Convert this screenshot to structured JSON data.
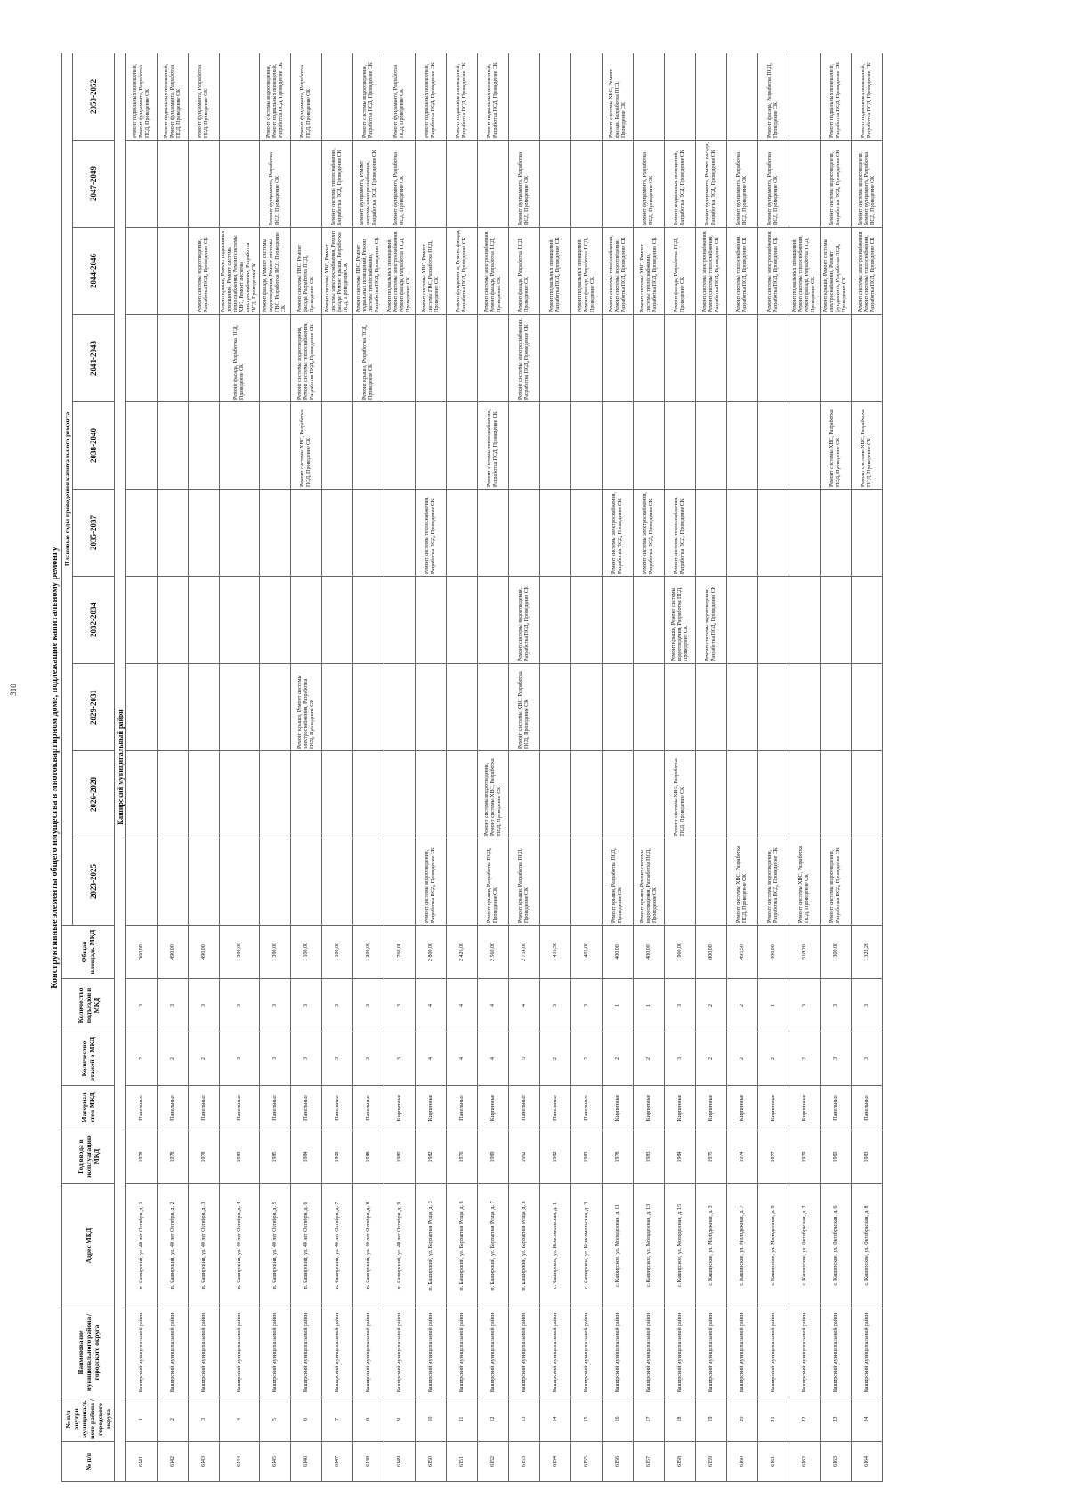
{
  "header": {
    "page_number": "310",
    "title": "Конструктивные элементы общего имущества в многоквартирном доме, подлежащие капитальному ремонту",
    "plan_years_label": "Плановые годы проведения капитального ремонта"
  },
  "table": {
    "columns": [
      "№ п/п",
      "№ п/п внутри муниципального района / городского округа",
      "Наименование муниципального района / городского округа",
      "Адрес МКД",
      "Год ввода в эксплуатацию МКД",
      "Материал стен МКД",
      "Количество этажей в МКД",
      "Количество подъездов в МКД",
      "Общая площадь МКД",
      "2023-2025",
      "2026-2028",
      "2029-2031",
      "2032-2034",
      "2035-2037",
      "2038-2040",
      "2041-2043",
      "2044-2046",
      "2047-2049",
      "2050-2052"
    ],
    "section": "Каширский муниципальный район",
    "rows": [
      [
        6141,
        1,
        "Каширский муниципальный район",
        "п. Каширский, ул. 40 лет Октября, д. 1",
        1978,
        "Панельные",
        2,
        3,
        "360,00",
        null,
        null,
        null,
        null,
        null,
        null,
        null,
        null,
        null,
        "Ремонт подвальных помещений, Ремонт фундамента, Разработка ПСД, Проведение СК"
      ],
      [
        6142,
        2,
        "Каширский муниципальный район",
        "п. Каширский, ул. 40 лет Октября, д. 2",
        1978,
        "Панельные",
        2,
        3,
        "490,00",
        null,
        null,
        null,
        null,
        null,
        null,
        null,
        null,
        null,
        "Ремонт подвальных помещений, Ремонт фундамента, Разработка ПСД, Проведение СК"
      ],
      [
        6143,
        3,
        "Каширский муниципальный район",
        "п. Каширский, ул. 40 лет Октября, д. 3",
        1978,
        "Панельные",
        2,
        3,
        "490,00",
        null,
        null,
        null,
        null,
        null,
        null,
        null,
        "Ремонт системы водоотведения, Разработка ПСД, Проведение СК",
        null,
        "Ремонт фундамента, Разработка ПСД, Проведение СК"
      ],
      [
        6144,
        4,
        "Каширский муниципальный район",
        "п. Каширский, ул. 40 лет Октября, д. 4",
        1983,
        "Панельные",
        3,
        3,
        "1 300,00",
        null,
        null,
        null,
        null,
        null,
        null,
        "Ремонт фасада, Разработка ПСД, Проведение СК",
        "Ремонт крыши, Ремонт подвальных помещений, Ремонт системы теплоснабжения, Ремонт системы ХВС, Ремонт системы электроснабжения, Разработка ПСД, Проведение СК",
        null,
        null
      ],
      [
        6145,
        5,
        "Каширский муниципальный район",
        "п. Каширский, ул. 40 лет Октября, д. 5",
        1985,
        "Панельные",
        3,
        3,
        "1 390,00",
        null,
        null,
        null,
        null,
        null,
        null,
        null,
        "Ремонт фасада, Ремонт системы водоотведения, Ремонт системы ГВС, Разработка ПСД, Проведение СК",
        "Ремонт фундамента, Разработка ПСД, Проведение СК",
        "Ремонт системы водоотведения, Ремонт подвальных помещений, Разработка ПСД, Проведение СК"
      ],
      [
        6146,
        6,
        "Каширский муниципальный район",
        "п. Каширский, ул. 40 лет Октября, д. 6",
        1984,
        "Панельные",
        3,
        3,
        "1 100,00",
        null,
        null,
        "Ремонт крыши, Ремонт системы электроснабжения, Разработка ПСД, Проведение СК",
        null,
        null,
        "Ремонт системы ХВС, Разработка ПСД, Проведение СК",
        "Ремонт системы водоотведения, Ремонт системы теплоснабжения, Разработка ПСД, Проведение СК",
        "Ремонт системы ГВС, Ремонт фасада, Разработка ПСД, Проведение СК",
        null,
        "Ремонт фундамента, Разработка ПСД, Проведение СК"
      ],
      [
        6147,
        7,
        "Каширский муниципальный район",
        "п. Каширский, ул. 40 лет Октября, д. 7",
        1988,
        "Панельные",
        3,
        3,
        "1 100,00",
        null,
        null,
        null,
        null,
        null,
        null,
        null,
        "Ремонт системы ХВС, Ремонт системы электроснабжения, Ремонт фасада, Ремонт крыши, Разработка ПСД, Проведение СК",
        "Ремонт системы теплоснабжения, Разработка ПСД, Проведение СК",
        null
      ],
      [
        6148,
        8,
        "Каширский муниципальный район",
        "п. Каширский, ул. 40 лет Октября, д. 8",
        1988,
        "Панельные",
        3,
        3,
        "1 300,00",
        null,
        null,
        null,
        null,
        null,
        null,
        "Ремонт крыши, Разработка ПСД, Проведение СК",
        "Ремонт системы ГВС, Ремонт подвальных помещений, Ремонт системы теплоснабжения, Разработка ПСД, Проведение СК",
        "Ремонт фундамента, Ремонт системы электроснабжения, Разработка ПСД, Проведение СК",
        "Ремонт системы водоотведения, Разработка ПСД, Проведение СК"
      ],
      [
        6149,
        9,
        "Каширский муниципальный район",
        "п. Каширский, ул. 40 лет Октября, д. 9",
        1980,
        "Кирпичные",
        3,
        3,
        "1 760,00",
        null,
        null,
        null,
        null,
        null,
        null,
        null,
        "Ремонт подвальных помещений, Ремонт системы электроснабжения, Ремонт фасада, Разработка ПСД, Проведение СК",
        "Ремонт фундамента, Разработка ПСД, Проведение СК",
        "Ремонт фундамента, Разработка ПСД, Проведение СК"
      ],
      [
        6150,
        10,
        "Каширский муниципальный район",
        "п. Каширский, ул. Бархатная Роща, д. 3",
        1982,
        "Кирпичные",
        4,
        4,
        "2 800,00",
        "Ремонт системы водоотведения, Разработка ПСД, Проведение СК",
        null,
        null,
        null,
        "Ремонт системы теплоснабжения, Разработка ПСД, Проведение СК",
        null,
        null,
        "Ремонт системы ХВС, Ремонт системы ГВС, Разработка ПСД, Проведение СК",
        null,
        "Ремонт подвальных помещений, Разработка ПСД, Проведение СК"
      ],
      [
        6151,
        11,
        "Каширский муниципальный район",
        "п. Каширский, ул. Бархатная Роща, д. 6",
        1976,
        "Панельные",
        4,
        4,
        "2 426,00",
        null,
        null,
        null,
        null,
        null,
        null,
        null,
        "Ремонт фундамента, Ремонт фасада, Разработка ПСД, Проведение СК",
        null,
        "Ремонт подвальных помещений, Разработка ПСД, Проведение СК"
      ],
      [
        6152,
        12,
        "Каширский муниципальный район",
        "п. Каширский, ул. Бархатная Роща, д. 7",
        1989,
        "Кирпичные",
        4,
        4,
        "2 560,00",
        "Ремонт крыши, Разработка ПСД, Проведение СК",
        "Ремонт системы водоотведения, Ремонт системы ХВС, Разработка ПСД, Проведение СК",
        null,
        null,
        null,
        "Ремонт системы теплоснабжения, Разработка ПСД, Проведение СК",
        null,
        "Ремонт системы электроснабжения, Ремонт фасада, Разработка ПСД, Проведение СК",
        null,
        "Ремонт подвальных помещений, Разработка ПСД, Проведение СК"
      ],
      [
        6153,
        13,
        "Каширский муниципальный район",
        "п. Каширский, ул. Бархатная Роща, д. 8",
        1992,
        "Панельные",
        5,
        4,
        "2 714,00",
        "Ремонт крыши, Разработка ПСД, Проведение СК",
        null,
        "Ремонт системы ХВС, Разработка ПСД, Проведение СК",
        "Ремонт системы водоотведения, Разработка ПСД, Проведение СК",
        null,
        null,
        "Ремонт системы электроснабжения, Разработка ПСД, Проведение СК",
        "Ремонт фасада, Разработка ПСД, Проведение СК",
        "Ремонт фундамента, Разработка ПСД, Проведение СК",
        null
      ],
      [
        6154,
        14,
        "Каширский муниципальный район",
        "с. Каширское, ул. Комсомольская, д. 1",
        1982,
        "Панельные",
        2,
        3,
        "1 416,50",
        null,
        null,
        null,
        null,
        null,
        null,
        null,
        "Ремонт подвальных помещений, Разработка ПСД, Проведение СК",
        null,
        null
      ],
      [
        6155,
        15,
        "Каширский муниципальный район",
        "с. Каширское, ул. Комсомольская, д. 3",
        1983,
        "Панельные",
        2,
        3,
        "1 405,00",
        null,
        null,
        null,
        null,
        null,
        null,
        null,
        "Ремонт подвальных помещений, Ремонт фасада, Разработка ПСД, Проведение СК",
        null,
        null
      ],
      [
        6156,
        16,
        "Каширский муниципальный район",
        "с. Каширское, ул. Молодежная, д. 11",
        1978,
        "Кирпичные",
        2,
        1,
        "400,00",
        "Ремонт крыши, Разработка ПСД, Проведение СК",
        null,
        null,
        null,
        "Ремонт системы электроснабжения, Разработка ПСД, Проведение СК",
        null,
        null,
        "Ремонт системы теплоснабжения, Ремонт системы водоотведения, Разработка ПСД, Проведение СК",
        null,
        "Ремонт системы ХВС, Ремонт фасада, Разработка ПСД, Проведение СК"
      ],
      [
        6157,
        17,
        "Каширский муниципальный район",
        "с. Каширское, ул. Молодежная, д. 13",
        1983,
        "Кирпичные",
        2,
        1,
        "400,00",
        "Ремонт крыши, Ремонт системы водоотведения, Разработка ПСД, Проведение СК",
        null,
        null,
        null,
        "Ремонт системы электроснабжения, Разработка ПСД, Проведение СК",
        null,
        null,
        "Ремонт системы ХВС, Ремонт системы теплоснабжения, Разработка ПСД, Проведение СК",
        "Ремонт фундамента, Разработка ПСД, Проведение СК",
        null
      ],
      [
        6158,
        18,
        "Каширский муниципальный район",
        "с. Каширское, ул. Молодежная, д. 15",
        1984,
        "Кирпичные",
        3,
        3,
        "1 960,00",
        null,
        "Ремонт системы ХВС, Разработка ПСД, Проведение СК",
        null,
        "Ремонт крыши, Ремонт системы водоотведения, Разработка ПСД, Проведение СК",
        "Ремонт системы теплоснабжения, Разработка ПСД, Проведение СК",
        null,
        null,
        "Ремонт фасада, Разработка ПСД, Проведение СК",
        "Ремонт подвальных помещений, Разработка ПСД, Проведение СК",
        null
      ],
      [
        6159,
        19,
        "Каширский муниципальный район",
        "с. Каширское, ул. Молодежная, д. 3",
        1975,
        "Кирпичные",
        2,
        2,
        "800,00",
        null,
        null,
        null,
        "Ремонт системы водоотведения, Разработка ПСД, Проведение СК",
        null,
        null,
        null,
        "Ремонт системы электроснабжения, Ремонт системы теплоснабжения, Разработка ПСД, Проведение СК",
        "Ремонт фундамента, Ремонт фасада, Разработка ПСД, Проведение СК",
        null
      ],
      [
        6160,
        20,
        "Каширский муниципальный район",
        "с. Каширское, ул. Молодежная, д. 7",
        1974,
        "Кирпичные",
        2,
        2,
        "495,50",
        "Ремонт системы ХВС, Разработка ПСД, Проведение СК",
        null,
        null,
        null,
        null,
        null,
        null,
        "Ремонт системы теплоснабжения, Разработка ПСД, Проведение СК",
        "Ремонт фундамента, Разработка ПСД, Проведение СК",
        null
      ],
      [
        6161,
        21,
        "Каширский муниципальный район",
        "с. Каширское, ул. Молодежная, д. 9",
        1977,
        "Кирпичные",
        2,
        1,
        "400,00",
        "Ремонт системы водоотведения, Разработка ПСД, Проведение СК",
        null,
        null,
        null,
        null,
        null,
        null,
        "Ремонт системы электроснабжения, Разработка ПСД, Проведение СК",
        "Ремонт фундамента, Разработка ПСД, Проведение СК",
        "Ремонт фасада, Разработка ПСД, Проведение СК"
      ],
      [
        6162,
        22,
        "Каширский муниципальный район",
        "с. Каширское, ул. Октябрьская, д. 2",
        1979,
        "Кирпичные",
        2,
        3,
        "518,20",
        "Ремонт системы ХВС, Разработка ПСД, Проведение СК",
        null,
        null,
        null,
        null,
        null,
        null,
        "Ремонт подвальных помещений, Ремонт системы теплоснабжения, Ремонт фасада, Разработка ПСД, Проведение СК",
        null,
        null
      ],
      [
        6163,
        23,
        "Каширский муниципальный район",
        "с. Каширское, ул. Октябрьская, д. 6",
        1980,
        "Панельные",
        3,
        3,
        "1 300,00",
        "Ремонт системы водоотведения, Разработка ПСД, Проведение СК",
        null,
        null,
        null,
        null,
        "Ремонт системы ХВС, Разработка ПСД, Проведение СК",
        null,
        "Ремонт крыши, Ремонт системы электроснабжения, Ремонт фундамента, Разработка ПСД, Проведение СК",
        "Ремонт системы водоотведения, Разработка ПСД, Проведение СК",
        "Ремонт подвальных помещений, Разработка ПСД, Проведение СК"
      ],
      [
        6164,
        24,
        "Каширский муниципальный район",
        "с. Каширское, ул. Октябрьская, д. 8",
        1983,
        "Панельные",
        3,
        3,
        "1 322,20",
        null,
        null,
        null,
        null,
        null,
        "Ремонт системы ХВС, Разработка ПСД, Проведение СК",
        null,
        "Ремонт системы электроснабжения, Ремонт системы теплоснабжения, Разработка ПСД, Проведение СК",
        "Ремонт системы водоотведения, Ремонт фундамента, Разработка ПСД, Проведение СК",
        "Ремонт подвальных помещений, Разработка ПСД, Проведение СК"
      ]
    ]
  }
}
